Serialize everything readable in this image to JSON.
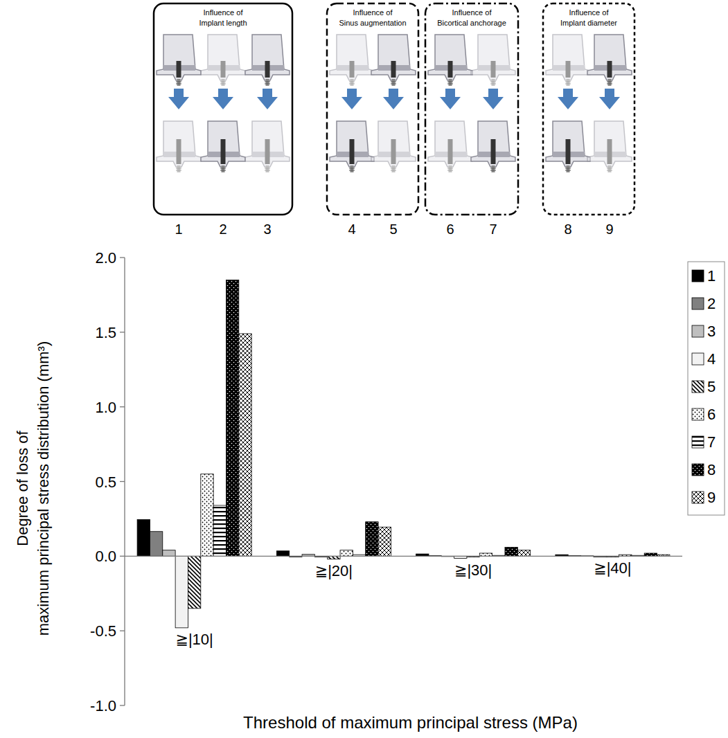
{
  "chart_data": {
    "type": "bar",
    "x_label": "Threshold of maximum principal stress (MPa)",
    "y_label": "Degree of loss of\nmaximum principal stress distribution (mm³)",
    "categories": [
      "≧|10|",
      "≧|20|",
      "≧|30|",
      "≧|40|"
    ],
    "ylim": [
      -1,
      2
    ],
    "yticks": [
      {
        "value": -1,
        "label": "-1.0"
      },
      {
        "value": -0.5,
        "label": "-0.5"
      },
      {
        "value": 0,
        "label": "0.0"
      },
      {
        "value": 0.5,
        "label": "0.5"
      },
      {
        "value": 1,
        "label": "1.0"
      },
      {
        "value": 1.5,
        "label": "1.5"
      },
      {
        "value": 2,
        "label": "2.0"
      }
    ],
    "grid": false,
    "legend": "top-right",
    "series": [
      {
        "name": "1",
        "color": "#000000",
        "marker": "solid",
        "values": [
          0.245,
          0.035,
          0.015,
          0.01
        ]
      },
      {
        "name": "2",
        "color": "#808080",
        "marker": "solid",
        "values": [
          0.165,
          -0.005,
          0.003,
          0.003
        ]
      },
      {
        "name": "3",
        "color": "#bfbfbf",
        "marker": "solid",
        "values": [
          0.04,
          0.012,
          0.0,
          0.002
        ]
      },
      {
        "name": "4",
        "color": "#f2f2f2",
        "marker": "solid",
        "values": [
          -0.48,
          -0.005,
          -0.015,
          -0.005
        ]
      },
      {
        "name": "5",
        "color": "#000000",
        "marker": "diagonal",
        "values": [
          -0.35,
          -0.02,
          -0.005,
          -0.005
        ]
      },
      {
        "name": "6",
        "color": "#000000",
        "marker": "dots",
        "values": [
          0.55,
          0.04,
          0.02,
          0.01
        ]
      },
      {
        "name": "7",
        "color": "#000000",
        "marker": "horizontal",
        "values": [
          0.34,
          0.01,
          0.005,
          0.005
        ]
      },
      {
        "name": "8",
        "color": "#000000",
        "marker": "reverse-dots",
        "values": [
          1.85,
          0.23,
          0.06,
          0.02
        ]
      },
      {
        "name": "9",
        "color": "#000000",
        "marker": "crosshatch",
        "values": [
          1.49,
          0.195,
          0.04,
          0.01
        ]
      }
    ],
    "groups": [
      {
        "title": "Influence of Implant length",
        "members": [
          1,
          2,
          3
        ]
      },
      {
        "title": "Influence of Sinus augmentation",
        "members": [
          4,
          5
        ]
      },
      {
        "title": "Influence of Bicortical anchorage",
        "members": [
          6,
          7
        ]
      },
      {
        "title": "Influence of Implant diameter",
        "members": [
          8,
          9
        ]
      }
    ]
  }
}
